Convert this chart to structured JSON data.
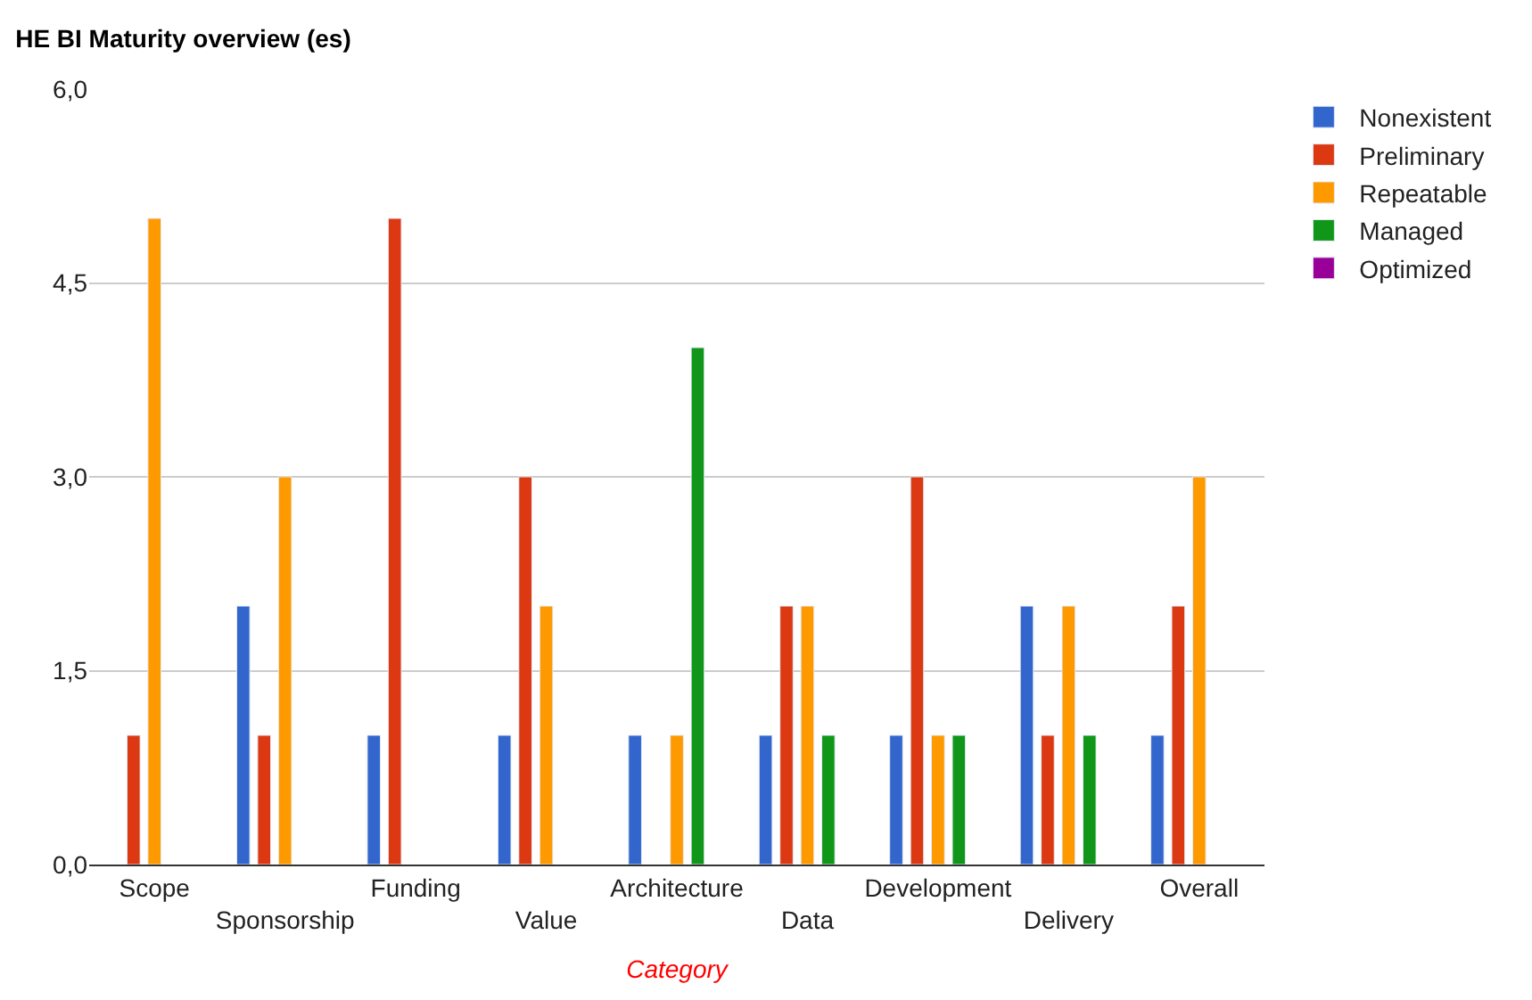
{
  "chart_data": {
    "type": "bar",
    "title": "HE BI Maturity overview (es)",
    "xlabel": "Category",
    "categories": [
      "Scope",
      "Sponsorship",
      "Funding",
      "Value",
      "Architecture",
      "Data",
      "Development",
      "Delivery",
      "Overall"
    ],
    "series": [
      {
        "name": "Nonexistent",
        "color": "#3366cc",
        "values": [
          null,
          2,
          1,
          1,
          1,
          1,
          1,
          2,
          1
        ]
      },
      {
        "name": "Preliminary",
        "color": "#dc3912",
        "values": [
          1,
          1,
          5,
          3,
          null,
          2,
          3,
          1,
          2
        ]
      },
      {
        "name": "Repeatable",
        "color": "#ff9900",
        "values": [
          5,
          3,
          null,
          2,
          1,
          2,
          1,
          2,
          3
        ]
      },
      {
        "name": "Managed",
        "color": "#109618",
        "values": [
          null,
          null,
          null,
          null,
          4,
          1,
          1,
          1,
          null
        ]
      },
      {
        "name": "Optimized",
        "color": "#990099",
        "values": [
          null,
          null,
          null,
          null,
          null,
          null,
          null,
          null,
          null
        ]
      }
    ],
    "ylim": [
      0,
      6
    ],
    "yticks": [
      {
        "value": 0,
        "label": "0,0"
      },
      {
        "value": 1.5,
        "label": "1,5"
      },
      {
        "value": 3,
        "label": "3,0"
      },
      {
        "value": 4.5,
        "label": "4,5"
      },
      {
        "value": 6,
        "label": "6,0"
      }
    ],
    "grid": "y",
    "legend": "top right"
  }
}
